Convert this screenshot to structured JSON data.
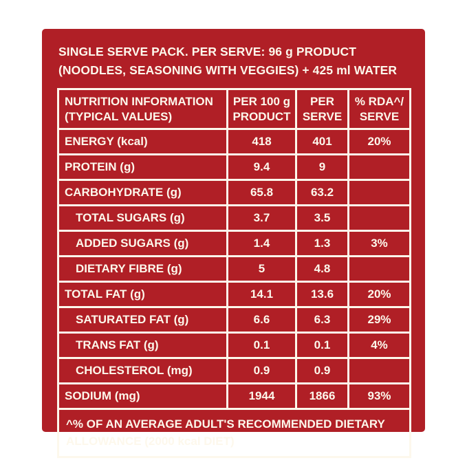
{
  "panel": {
    "bg_color": "#B01F26",
    "text_color": "#FDF8EC",
    "header": "SINGLE SERVE PACK. PER SERVE: 96 g PRODUCT\n(NOODLES, SEASONING WITH VEGGIES) + 425 ml WATER"
  },
  "table": {
    "headers": {
      "info": "NUTRITION INFORMATION\n(TYPICAL VALUES)",
      "per100": "PER 100 g\nPRODUCT",
      "serve": "PER\nSERVE",
      "rda": "% RDA^/\nSERVE"
    },
    "rows": [
      {
        "name": "ENERGY (kcal)",
        "per100": "418",
        "serve": "401",
        "rda": "20%",
        "indent": false
      },
      {
        "name": "PROTEIN (g)",
        "per100": "9.4",
        "serve": "9",
        "rda": "",
        "indent": false
      },
      {
        "name": "CARBOHYDRATE (g)",
        "per100": "65.8",
        "serve": "63.2",
        "rda": "",
        "indent": false
      },
      {
        "name": "TOTAL SUGARS (g)",
        "per100": "3.7",
        "serve": "3.5",
        "rda": "",
        "indent": true
      },
      {
        "name": "ADDED SUGARS (g)",
        "per100": "1.4",
        "serve": "1.3",
        "rda": "3%",
        "indent": true
      },
      {
        "name": "DIETARY FIBRE (g)",
        "per100": "5",
        "serve": "4.8",
        "rda": "",
        "indent": true
      },
      {
        "name": "TOTAL FAT (g)",
        "per100": "14.1",
        "serve": "13.6",
        "rda": "20%",
        "indent": false
      },
      {
        "name": "SATURATED FAT (g)",
        "per100": "6.6",
        "serve": "6.3",
        "rda": "29%",
        "indent": true
      },
      {
        "name": "TRANS FAT (g)",
        "per100": "0.1",
        "serve": "0.1",
        "rda": "4%",
        "indent": true
      },
      {
        "name": "CHOLESTEROL (mg)",
        "per100": "0.9",
        "serve": "0.9",
        "rda": "",
        "indent": true
      },
      {
        "name": "SODIUM (mg)",
        "per100": "1944",
        "serve": "1866",
        "rda": "93%",
        "indent": false
      }
    ],
    "footnote": "^% OF AN AVERAGE ADULT'S RECOMMENDED DIETARY\nALLOWANCE (2000 kcal DIET)"
  }
}
